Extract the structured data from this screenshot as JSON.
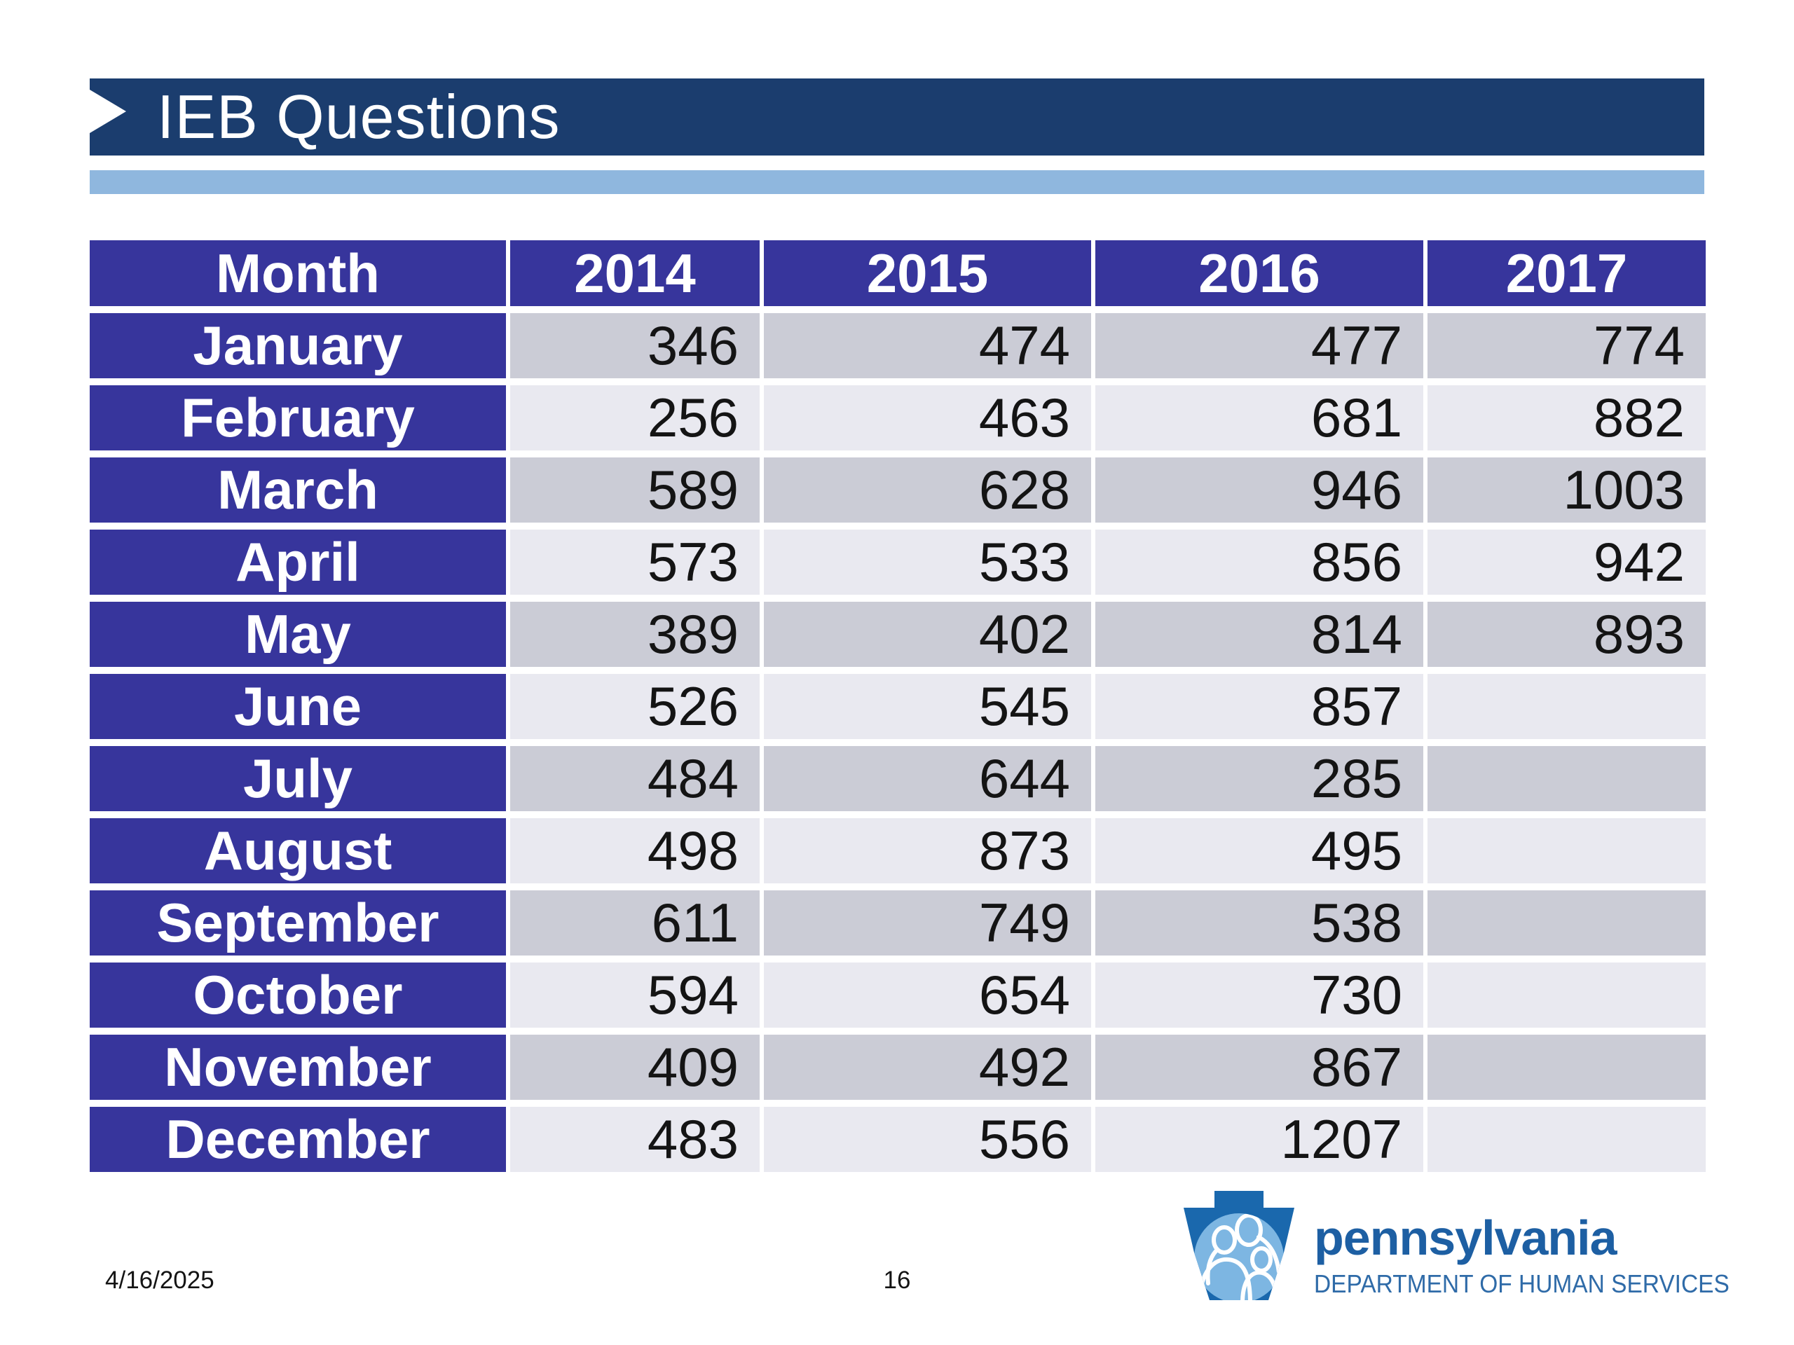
{
  "slide": {
    "title": "IEB Questions",
    "footer": {
      "date": "4/16/2025",
      "page_number": "16"
    },
    "logo": {
      "brand": "pennsylvania",
      "subtext": "DEPARTMENT OF HUMAN SERVICES",
      "keystone_icon": "keystone-family-icon"
    }
  },
  "table": {
    "headers": [
      "Month",
      "2014",
      "2015",
      "2016",
      "2017"
    ],
    "rows": [
      {
        "month": "January",
        "values": [
          "346",
          "474",
          "477",
          "774"
        ]
      },
      {
        "month": "February",
        "values": [
          "256",
          "463",
          "681",
          "882"
        ]
      },
      {
        "month": "March",
        "values": [
          "589",
          "628",
          "946",
          "1003"
        ]
      },
      {
        "month": "April",
        "values": [
          "573",
          "533",
          "856",
          "942"
        ]
      },
      {
        "month": "May",
        "values": [
          "389",
          "402",
          "814",
          "893"
        ]
      },
      {
        "month": "June",
        "values": [
          "526",
          "545",
          "857",
          ""
        ]
      },
      {
        "month": "July",
        "values": [
          "484",
          "644",
          "285",
          ""
        ]
      },
      {
        "month": "August",
        "values": [
          "498",
          "873",
          "495",
          ""
        ]
      },
      {
        "month": "September",
        "values": [
          "611",
          "749",
          "538",
          ""
        ]
      },
      {
        "month": "October",
        "values": [
          "594",
          "654",
          "730",
          ""
        ]
      },
      {
        "month": "November",
        "values": [
          "409",
          "492",
          "867",
          ""
        ]
      },
      {
        "month": "December",
        "values": [
          "483",
          "556",
          "1207",
          ""
        ]
      }
    ]
  },
  "colors": {
    "accent_navy": "#1b3d6e",
    "accent_light_blue": "#8fb7de",
    "table_header_blue": "#37359c",
    "row_dark": "#cbccd6",
    "row_light": "#e9e9f0",
    "text_dark": "#141414",
    "logo_keystone": "#1a68ad",
    "logo_circle": "#7db6e2",
    "logo_text": "#1d5fa3",
    "logo_subtext": "#2f6ba8"
  }
}
